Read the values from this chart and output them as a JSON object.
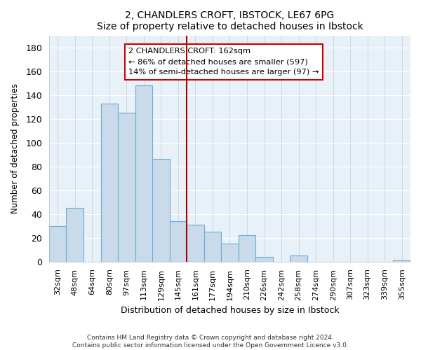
{
  "title": "2, CHANDLERS CROFT, IBSTOCK, LE67 6PG",
  "subtitle": "Size of property relative to detached houses in Ibstock",
  "xlabel": "Distribution of detached houses by size in Ibstock",
  "ylabel": "Number of detached properties",
  "bar_labels": [
    "32sqm",
    "48sqm",
    "64sqm",
    "80sqm",
    "97sqm",
    "113sqm",
    "129sqm",
    "145sqm",
    "161sqm",
    "177sqm",
    "194sqm",
    "210sqm",
    "226sqm",
    "242sqm",
    "258sqm",
    "274sqm",
    "290sqm",
    "307sqm",
    "323sqm",
    "339sqm",
    "355sqm"
  ],
  "bar_values": [
    30,
    45,
    0,
    133,
    125,
    148,
    86,
    34,
    31,
    25,
    15,
    22,
    4,
    0,
    5,
    0,
    0,
    0,
    0,
    0,
    1
  ],
  "bar_color": "#c9daea",
  "bar_edge_color": "#6aaed6",
  "vline_color": "#aa0000",
  "annotation_title": "2 CHANDLERS CROFT: 162sqm",
  "annotation_line1": "← 86% of detached houses are smaller (597)",
  "annotation_line2": "14% of semi-detached houses are larger (97) →",
  "annotation_box_color": "#ffffff",
  "annotation_box_edge": "#cc0000",
  "ylim": [
    0,
    190
  ],
  "yticks": [
    0,
    20,
    40,
    60,
    80,
    100,
    120,
    140,
    160,
    180
  ],
  "footer1": "Contains HM Land Registry data © Crown copyright and database right 2024.",
  "footer2": "Contains public sector information licensed under the Open Government Licence v3.0.",
  "bg_color": "#e8f0f8"
}
